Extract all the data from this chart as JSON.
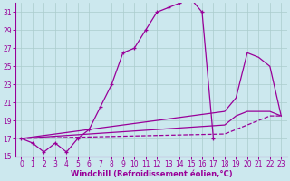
{
  "bg_color": "#cce8ee",
  "grid_color": "#aacccc",
  "line_color": "#990099",
  "xlabel": "Windchill (Refroidissement éolien,°C)",
  "xlim": [
    -0.5,
    23.5
  ],
  "ylim": [
    15,
    32
  ],
  "yticks": [
    15,
    17,
    19,
    21,
    23,
    25,
    27,
    29,
    31
  ],
  "xticks": [
    0,
    1,
    2,
    3,
    4,
    5,
    6,
    7,
    8,
    9,
    10,
    11,
    12,
    13,
    14,
    15,
    16,
    17,
    18,
    19,
    20,
    21,
    22,
    23
  ],
  "main_x": [
    0,
    1,
    2,
    3,
    4,
    5,
    6,
    7,
    8,
    9,
    10,
    11,
    12,
    13,
    14,
    15,
    16,
    17
  ],
  "main_y": [
    17.0,
    16.5,
    15.5,
    16.5,
    15.5,
    17.0,
    18.0,
    20.5,
    23.0,
    26.5,
    27.0,
    29.0,
    31.0,
    31.5,
    32.0,
    32.5,
    31.0,
    17.0
  ],
  "upper_x": [
    0,
    18,
    19,
    20,
    21,
    22,
    23
  ],
  "upper_y": [
    17.0,
    20.0,
    21.5,
    26.5,
    26.0,
    25.0,
    19.5
  ],
  "mid_x": [
    0,
    18,
    19,
    20,
    21,
    22,
    23
  ],
  "mid_y": [
    17.0,
    18.5,
    19.5,
    20.0,
    20.0,
    20.0,
    19.5
  ],
  "lower_x": [
    0,
    18,
    19,
    20,
    21,
    22,
    23
  ],
  "lower_y": [
    17.0,
    17.5,
    18.0,
    18.5,
    19.0,
    19.5,
    19.5
  ],
  "tickfontsize": 5.5,
  "labelfontsize": 6.0
}
